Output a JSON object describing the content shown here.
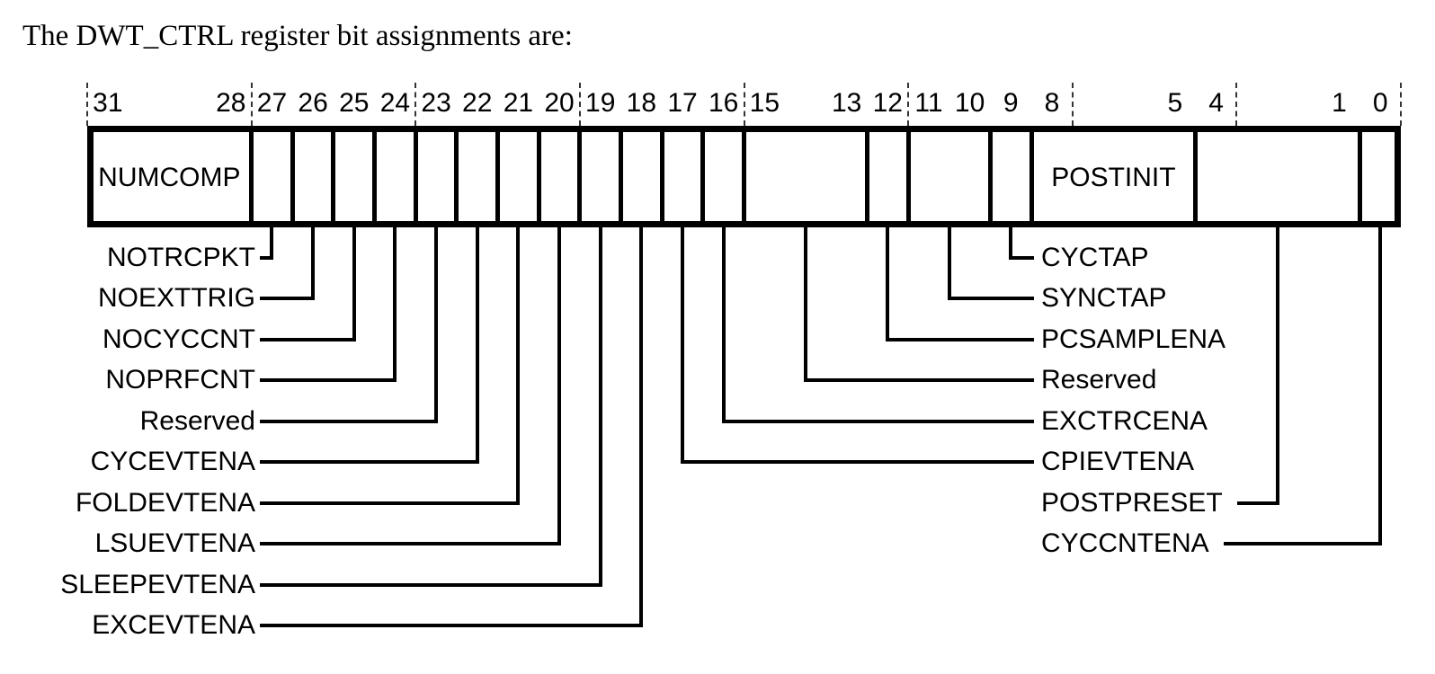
{
  "title": "The DWT_CTRL register bit assignments are:",
  "register": {
    "name": "DWT_CTRL",
    "colors": {
      "line": "#000000",
      "text": "#000000",
      "background": "#ffffff"
    },
    "bit_numbers": [
      {
        "label": "31",
        "bit": 31
      },
      {
        "label": "28",
        "bit": 28
      },
      {
        "label": "27",
        "bit": 27
      },
      {
        "label": "26",
        "bit": 26
      },
      {
        "label": "25",
        "bit": 25
      },
      {
        "label": "24",
        "bit": 24
      },
      {
        "label": "23",
        "bit": 23
      },
      {
        "label": "22",
        "bit": 22
      },
      {
        "label": "21",
        "bit": 21
      },
      {
        "label": "20",
        "bit": 20
      },
      {
        "label": "19",
        "bit": 19
      },
      {
        "label": "18",
        "bit": 18
      },
      {
        "label": "17",
        "bit": 17
      },
      {
        "label": "16",
        "bit": 16
      },
      {
        "label": "15",
        "bit": 15
      },
      {
        "label": "13",
        "bit": 13
      },
      {
        "label": "12",
        "bit": 12
      },
      {
        "label": "11",
        "bit": 11
      },
      {
        "label": "10",
        "bit": 10
      },
      {
        "label": "9",
        "bit": 9
      },
      {
        "label": "8",
        "bit": 8
      },
      {
        "label": "5",
        "bit": 5
      },
      {
        "label": "4",
        "bit": 4
      },
      {
        "label": "1",
        "bit": 1
      },
      {
        "label": "0",
        "bit": 0
      }
    ],
    "nibble_tick_boundaries": [
      32,
      28,
      24,
      20,
      16,
      12,
      8,
      4,
      0
    ],
    "fields": [
      {
        "name": "NUMCOMP",
        "msb": 31,
        "lsb": 28,
        "display": "NUMCOMP"
      },
      {
        "name": "NOTRCPKT",
        "msb": 27,
        "lsb": 27,
        "display": ""
      },
      {
        "name": "NOEXTTRIG",
        "msb": 26,
        "lsb": 26,
        "display": ""
      },
      {
        "name": "NOCYCCNT",
        "msb": 25,
        "lsb": 25,
        "display": ""
      },
      {
        "name": "NOPRFCNT",
        "msb": 24,
        "lsb": 24,
        "display": ""
      },
      {
        "name": "Reserved",
        "msb": 23,
        "lsb": 23,
        "display": ""
      },
      {
        "name": "CYCEVTENA",
        "msb": 22,
        "lsb": 22,
        "display": ""
      },
      {
        "name": "FOLDEVTENA",
        "msb": 21,
        "lsb": 21,
        "display": ""
      },
      {
        "name": "LSUEVTENA",
        "msb": 20,
        "lsb": 20,
        "display": ""
      },
      {
        "name": "SLEEPEVTENA",
        "msb": 19,
        "lsb": 19,
        "display": ""
      },
      {
        "name": "EXCEVTENA",
        "msb": 18,
        "lsb": 18,
        "display": ""
      },
      {
        "name": "CPIEVTENA",
        "msb": 17,
        "lsb": 17,
        "display": ""
      },
      {
        "name": "EXCTRCENA",
        "msb": 16,
        "lsb": 16,
        "display": ""
      },
      {
        "name": "Reserved",
        "msb": 15,
        "lsb": 13,
        "display": ""
      },
      {
        "name": "PCSAMPLENA",
        "msb": 12,
        "lsb": 12,
        "display": ""
      },
      {
        "name": "SYNCTAP",
        "msb": 11,
        "lsb": 10,
        "display": ""
      },
      {
        "name": "CYCTAP",
        "msb": 9,
        "lsb": 9,
        "display": ""
      },
      {
        "name": "POSTINIT",
        "msb": 8,
        "lsb": 5,
        "display": "POSTINIT"
      },
      {
        "name": "POSTPRESET",
        "msb": 4,
        "lsb": 1,
        "display": ""
      },
      {
        "name": "CYCCNTENA",
        "msb": 0,
        "lsb": 0,
        "display": ""
      }
    ],
    "callouts_left": [
      {
        "label": "NOTRCPKT",
        "msb": 27,
        "lsb": 27,
        "row": 0
      },
      {
        "label": "NOEXTTRIG",
        "msb": 26,
        "lsb": 26,
        "row": 1
      },
      {
        "label": "NOCYCCNT",
        "msb": 25,
        "lsb": 25,
        "row": 2
      },
      {
        "label": "NOPRFCNT",
        "msb": 24,
        "lsb": 24,
        "row": 3
      },
      {
        "label": "Reserved",
        "msb": 23,
        "lsb": 23,
        "row": 4
      },
      {
        "label": "CYCEVTENA",
        "msb": 22,
        "lsb": 22,
        "row": 5
      },
      {
        "label": "FOLDEVTENA",
        "msb": 21,
        "lsb": 21,
        "row": 6
      },
      {
        "label": "LSUEVTENA",
        "msb": 20,
        "lsb": 20,
        "row": 7
      },
      {
        "label": "SLEEPEVTENA",
        "msb": 19,
        "lsb": 19,
        "row": 8
      },
      {
        "label": "EXCEVTENA",
        "msb": 18,
        "lsb": 18,
        "row": 9
      }
    ],
    "callouts_right": [
      {
        "label": "CYCTAP",
        "msb": 9,
        "lsb": 9,
        "row": 0,
        "line_side": "left"
      },
      {
        "label": "SYNCTAP",
        "msb": 11,
        "lsb": 10,
        "row": 1,
        "line_side": "left"
      },
      {
        "label": "PCSAMPLENA",
        "msb": 12,
        "lsb": 12,
        "row": 2,
        "line_side": "left"
      },
      {
        "label": "Reserved",
        "msb": 15,
        "lsb": 13,
        "row": 3,
        "line_side": "left"
      },
      {
        "label": "EXCTRCENA",
        "msb": 16,
        "lsb": 16,
        "row": 4,
        "line_side": "left"
      },
      {
        "label": "CPIEVTENA",
        "msb": 17,
        "lsb": 17,
        "row": 5,
        "line_side": "left"
      },
      {
        "label": "POSTPRESET",
        "msb": 4,
        "lsb": 1,
        "row": 6,
        "line_side": "right"
      },
      {
        "label": "CYCCNTENA",
        "msb": 0,
        "lsb": 0,
        "row": 7,
        "line_side": "right"
      }
    ]
  }
}
